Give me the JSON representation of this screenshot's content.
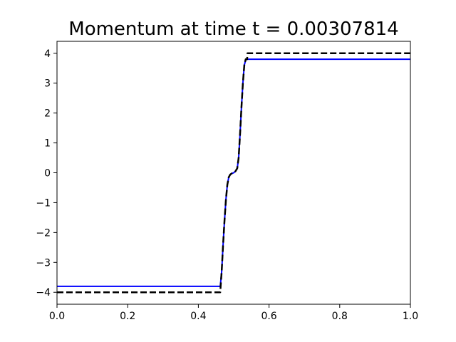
{
  "chart_data": {
    "type": "line",
    "title": "Momentum at time t =     0.00307814",
    "xlabel": "",
    "ylabel": "",
    "xlim": [
      0.0,
      1.0
    ],
    "ylim": [
      -4.4,
      4.4
    ],
    "grid": false,
    "x_ticks": [
      0.0,
      0.2,
      0.4,
      0.6,
      0.8,
      1.0
    ],
    "x_tick_labels": [
      "0.0",
      "0.2",
      "0.4",
      "0.6",
      "0.8",
      "1.0"
    ],
    "y_ticks": [
      -4,
      -3,
      -2,
      -1,
      0,
      1,
      2,
      3,
      4
    ],
    "y_tick_labels": [
      "−4",
      "−3",
      "−2",
      "−1",
      "0",
      "1",
      "2",
      "3",
      "4"
    ],
    "series": [
      {
        "color": "#0000ff",
        "style": "solid",
        "x": [
          0.0,
          0.462,
          0.466,
          0.47,
          0.474,
          0.478,
          0.482,
          0.486,
          0.49,
          0.495,
          0.5,
          0.505,
          0.51,
          0.514,
          0.518,
          0.522,
          0.526,
          0.53,
          0.534,
          0.538,
          1.0
        ],
        "y": [
          -3.8,
          -3.8,
          -3.3,
          -2.4,
          -1.6,
          -0.9,
          -0.4,
          -0.15,
          -0.06,
          -0.02,
          0.0,
          0.05,
          0.15,
          0.5,
          1.3,
          2.2,
          3.0,
          3.6,
          3.78,
          3.8,
          3.8
        ]
      },
      {
        "color": "#000000",
        "style": "dashed",
        "x": [
          0.0,
          0.462,
          0.463,
          0.466,
          0.47,
          0.474,
          0.478,
          0.482,
          0.486,
          0.49,
          0.495,
          0.5,
          0.505,
          0.51,
          0.514,
          0.518,
          0.522,
          0.526,
          0.53,
          0.534,
          0.538,
          0.539,
          1.0
        ],
        "y": [
          -4.0,
          -4.0,
          -3.8,
          -3.3,
          -2.4,
          -1.6,
          -0.9,
          -0.4,
          -0.15,
          -0.06,
          -0.02,
          0.0,
          0.05,
          0.15,
          0.5,
          1.3,
          2.2,
          3.0,
          3.6,
          3.8,
          3.8,
          4.0,
          4.0
        ]
      }
    ]
  }
}
